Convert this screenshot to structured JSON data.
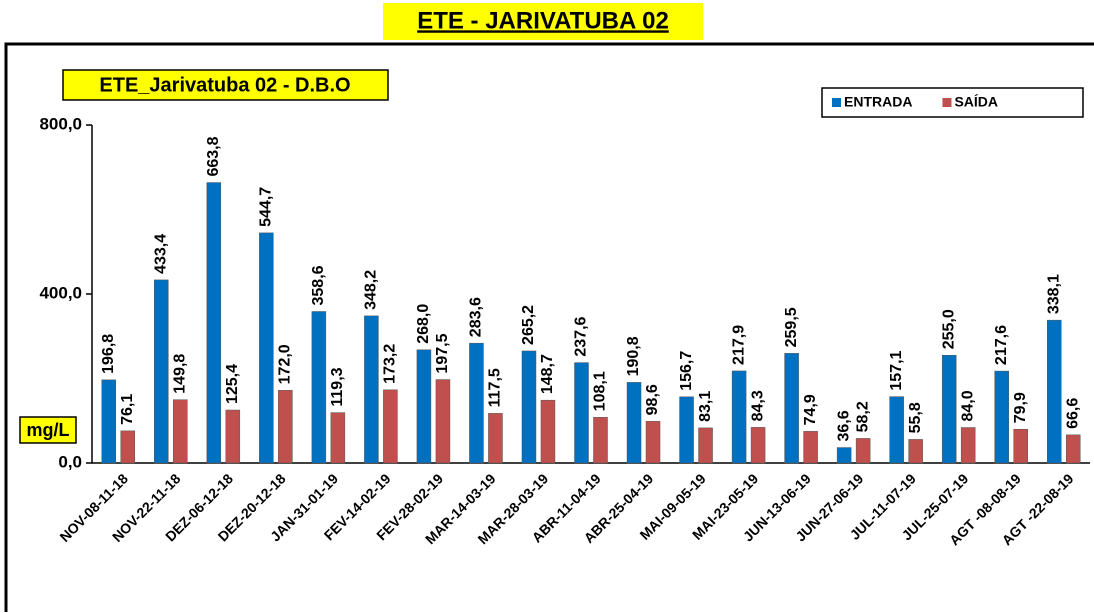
{
  "chart_data": {
    "type": "bar",
    "heading": "ETE - JARIVATUBA 02",
    "title": "ETE_Jarivatuba 02 - D.B.O",
    "y_label": "mg/L",
    "categories": [
      "NOV-08-11-18",
      "NOV-22-11-18",
      "DEZ-06-12-18",
      "DEZ-20-12-18",
      "JAN-31-01-19",
      "FEV-14-02-19",
      "FEV-28-02-19",
      "MAR-14-03-19",
      "MAR-28-03-19",
      "ABR-11-04-19",
      "ABR-25-04-19",
      "MAI-09-05-19",
      "MAI-23-05-19",
      "JUN-13-06-19",
      "JUN-27-06-19",
      "JUL-11-07-19",
      "JUL-25-07-19",
      "AGT -08-08-19",
      "AGT -22-08-19"
    ],
    "series": [
      {
        "name": "ENTRADA",
        "color": "#0070c0",
        "values": [
          196.8,
          433.4,
          663.8,
          544.7,
          358.6,
          348.2,
          268.0,
          283.6,
          265.2,
          237.6,
          190.8,
          156.7,
          217.9,
          259.5,
          36.6,
          157.1,
          255.0,
          217.6,
          338.1
        ],
        "value_labels": [
          "196,8",
          "433,4",
          "663,8",
          "544,7",
          "358,6",
          "348,2",
          "268,0",
          "283,6",
          "265,2",
          "237,6",
          "190,8",
          "156,7",
          "217,9",
          "259,5",
          "36,6",
          "157,1",
          "255,0",
          "217,6",
          "338,1"
        ]
      },
      {
        "name": "SAÍDA",
        "color": "#c0504d",
        "values": [
          76.1,
          149.8,
          125.4,
          172.0,
          119.3,
          173.2,
          197.5,
          117.5,
          148.7,
          108.1,
          98.6,
          83.1,
          84.3,
          74.9,
          58.2,
          55.8,
          84.0,
          79.9,
          66.6
        ],
        "value_labels": [
          "76,1",
          "149,8",
          "125,4",
          "172,0",
          "119,3",
          "173,2",
          "197,5",
          "117,5",
          "148,7",
          "108,1",
          "98,6",
          "83,1",
          "84,3",
          "74,9",
          "58,2",
          "55,8",
          "84,0",
          "79,9",
          "66,6"
        ]
      }
    ],
    "ylim": [
      0,
      800
    ],
    "yticks": [
      {
        "value": 0,
        "label": "0,0"
      },
      {
        "value": 400,
        "label": "400,0"
      },
      {
        "value": 800,
        "label": "800,0"
      }
    ],
    "legend": "top-right"
  }
}
